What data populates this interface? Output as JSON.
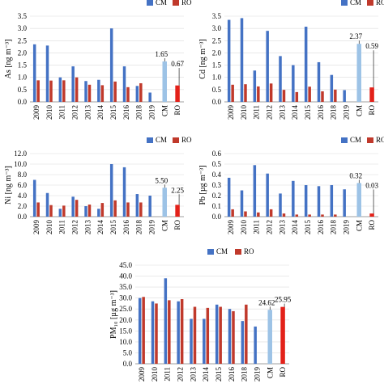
{
  "colors": {
    "cm": "#4472c4",
    "ro": "#c0392b",
    "cm_mean": "#9dc3e6",
    "ro_mean": "#e32119"
  },
  "legend": {
    "cm": "CM",
    "ro": "RO"
  },
  "chart_data": [
    {
      "type": "bar",
      "id": "as",
      "ylabel": "As [ng m⁻³]",
      "ylim": [
        0,
        3.5
      ],
      "yticks": [
        "0.0",
        "0.5",
        "1.0",
        "1.5",
        "2.0",
        "2.5",
        "3.0",
        "3.5"
      ],
      "categories": [
        "2009",
        "2010",
        "2011",
        "2012",
        "2013",
        "2014",
        "2015",
        "2016",
        "2018",
        "2019",
        "CM",
        "RO"
      ],
      "series": [
        {
          "name": "CM",
          "values": [
            2.35,
            2.3,
            1.0,
            1.45,
            0.85,
            0.9,
            3.0,
            1.45,
            0.65,
            0.38,
            null,
            null
          ]
        },
        {
          "name": "RO",
          "values": [
            0.88,
            0.87,
            0.88,
            1.0,
            0.7,
            0.68,
            0.83,
            0.6,
            0.76,
            null,
            null,
            null
          ]
        }
      ],
      "means": {
        "CM": 1.65,
        "RO": 0.67
      },
      "mean_labels": {
        "CM": "1.65",
        "RO": "0.67"
      },
      "legend_position": "top-right"
    },
    {
      "type": "bar",
      "id": "cd",
      "ylabel": "Cd [ng m⁻³]",
      "ylim": [
        0,
        3.5
      ],
      "yticks": [
        "0.0",
        "0.5",
        "1.0",
        "1.5",
        "2.0",
        "2.5",
        "3.0",
        "3.5"
      ],
      "categories": [
        "2009",
        "2010",
        "2011",
        "2012",
        "2013",
        "2014",
        "2015",
        "2016",
        "2018",
        "2019",
        "CM",
        "RO"
      ],
      "series": [
        {
          "name": "CM",
          "values": [
            3.35,
            3.42,
            1.28,
            2.9,
            1.87,
            1.5,
            3.07,
            1.62,
            1.1,
            0.48,
            null,
            null
          ]
        },
        {
          "name": "RO",
          "values": [
            0.7,
            0.72,
            0.63,
            0.75,
            0.49,
            0.4,
            0.62,
            0.43,
            0.5,
            null,
            null,
            null
          ]
        }
      ],
      "means": {
        "CM": 2.37,
        "RO": 0.59
      },
      "mean_labels": {
        "CM": "2.37",
        "RO": "0.59"
      },
      "legend_position": "top-right"
    },
    {
      "type": "bar",
      "id": "ni",
      "ylabel": "Ni [ng m⁻³]",
      "ylim": [
        0,
        12
      ],
      "yticks": [
        "0.0",
        "2.0",
        "4.0",
        "6.0",
        "8.0",
        "10.0",
        "12.0"
      ],
      "categories": [
        "2009",
        "2010",
        "2011",
        "2012",
        "2013",
        "2014",
        "2015",
        "2016",
        "2018",
        "2019",
        "CM",
        "RO"
      ],
      "series": [
        {
          "name": "CM",
          "values": [
            7.0,
            4.5,
            1.5,
            3.8,
            2.0,
            1.5,
            10.0,
            9.4,
            4.3,
            4.0,
            null,
            null
          ]
        },
        {
          "name": "RO",
          "values": [
            2.7,
            2.2,
            2.1,
            3.2,
            2.3,
            2.6,
            3.1,
            2.7,
            2.7,
            null,
            null,
            null
          ]
        }
      ],
      "means": {
        "CM": 5.5,
        "RO": 2.25
      },
      "mean_labels": {
        "CM": "5.50",
        "RO": "2.25"
      },
      "legend_position": "top-right"
    },
    {
      "type": "bar",
      "id": "pb",
      "ylabel": "Pb [µg m⁻³]",
      "ylim": [
        0,
        0.6
      ],
      "yticks": [
        "0.0",
        "0.1",
        "0.2",
        "0.3",
        "0.4",
        "0.5",
        "0.6"
      ],
      "categories": [
        "2009",
        "2010",
        "2011",
        "2012",
        "2013",
        "2014",
        "2015",
        "2016",
        "2018",
        "2019",
        "CM",
        "RO"
      ],
      "series": [
        {
          "name": "CM",
          "values": [
            0.37,
            0.25,
            0.49,
            0.41,
            0.22,
            0.34,
            0.3,
            0.29,
            0.3,
            0.26,
            null,
            null
          ]
        },
        {
          "name": "RO",
          "values": [
            0.07,
            0.05,
            0.04,
            0.07,
            0.03,
            0.02,
            0.02,
            0.02,
            0.02,
            null,
            null,
            null
          ]
        }
      ],
      "means": {
        "CM": 0.32,
        "RO": 0.03
      },
      "mean_labels": {
        "CM": "0.32",
        "RO": "0.03"
      },
      "legend_position": "top-right"
    },
    {
      "type": "bar",
      "id": "pm10",
      "ylabel": "PM₁₀ [µg m⁻³]",
      "ylim": [
        0,
        45
      ],
      "yticks": [
        "0.0",
        "5.0",
        "10.0",
        "15.0",
        "20.0",
        "25.0",
        "30.0",
        "35.0",
        "40.0",
        "45.0"
      ],
      "categories": [
        "2009",
        "2010",
        "2011",
        "2012",
        "2013",
        "2014",
        "2015",
        "2016",
        "2018",
        "2019",
        "CM",
        "RO"
      ],
      "series": [
        {
          "name": "CM",
          "values": [
            30.0,
            28.5,
            39.0,
            28.5,
            20.5,
            20.5,
            27.0,
            25.0,
            19.5,
            17.0,
            null,
            null
          ]
        },
        {
          "name": "RO",
          "values": [
            30.5,
            27.5,
            29.0,
            29.5,
            26.0,
            25.5,
            26.0,
            24.0,
            27.0,
            null,
            null,
            null
          ]
        }
      ],
      "means": {
        "CM": 24.62,
        "RO": 25.95
      },
      "mean_labels": {
        "CM": "24.62",
        "RO": "25.95"
      },
      "legend_position": "top-center"
    }
  ]
}
